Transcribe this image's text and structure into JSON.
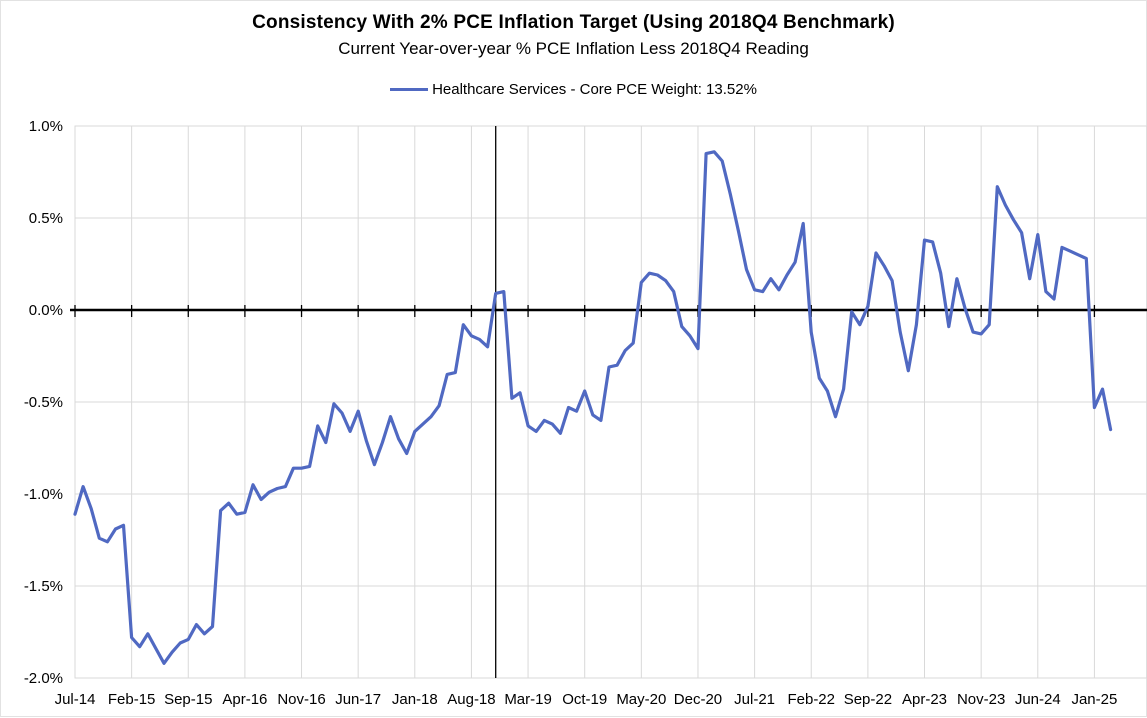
{
  "chart_data": {
    "type": "line",
    "title": "Consistency With 2% PCE Inflation Target (Using 2018Q4 Benchmark)",
    "subtitle": "Current Year-over-year % PCE Inflation Less 2018Q4 Reading",
    "legend_position": "top-center",
    "grid": true,
    "x": [
      "Jul-14",
      "Aug-14",
      "Sep-14",
      "Oct-14",
      "Nov-14",
      "Dec-14",
      "Jan-15",
      "Feb-15",
      "Mar-15",
      "Apr-15",
      "May-15",
      "Jun-15",
      "Jul-15",
      "Aug-15",
      "Sep-15",
      "Oct-15",
      "Nov-15",
      "Dec-15",
      "Jan-16",
      "Feb-16",
      "Mar-16",
      "Apr-16",
      "May-16",
      "Jun-16",
      "Jul-16",
      "Aug-16",
      "Sep-16",
      "Oct-16",
      "Nov-16",
      "Dec-16",
      "Jan-17",
      "Feb-17",
      "Mar-17",
      "Apr-17",
      "May-17",
      "Jun-17",
      "Jul-17",
      "Aug-17",
      "Sep-17",
      "Oct-17",
      "Nov-17",
      "Dec-17",
      "Jan-18",
      "Feb-18",
      "Mar-18",
      "Apr-18",
      "May-18",
      "Jun-18",
      "Jul-18",
      "Aug-18",
      "Sep-18",
      "Oct-18",
      "Nov-18",
      "Dec-18",
      "Jan-19",
      "Feb-19",
      "Mar-19",
      "Apr-19",
      "May-19",
      "Jun-19",
      "Jul-19",
      "Aug-19",
      "Sep-19",
      "Oct-19",
      "Nov-19",
      "Dec-19",
      "Jan-20",
      "Feb-20",
      "Mar-20",
      "Apr-20",
      "May-20",
      "Jun-20",
      "Jul-20",
      "Aug-20",
      "Sep-20",
      "Oct-20",
      "Nov-20",
      "Dec-20",
      "Jan-21",
      "Feb-21",
      "Mar-21",
      "Apr-21",
      "May-21",
      "Jun-21",
      "Jul-21",
      "Aug-21",
      "Sep-21",
      "Oct-21",
      "Nov-21",
      "Dec-21",
      "Jan-22",
      "Feb-22",
      "Mar-22",
      "Apr-22",
      "May-22",
      "Jun-22",
      "Jul-22",
      "Aug-22",
      "Sep-22",
      "Oct-22",
      "Nov-22",
      "Dec-22",
      "Jan-23",
      "Feb-23",
      "Mar-23",
      "Apr-23",
      "May-23",
      "Jun-23",
      "Jul-23",
      "Aug-23",
      "Sep-23",
      "Oct-23",
      "Nov-23",
      "Dec-23",
      "Jan-24",
      "Feb-24",
      "Mar-24",
      "Apr-24",
      "May-24",
      "Jun-24",
      "Jul-24",
      "Aug-24",
      "Sep-24",
      "Oct-24",
      "Nov-24",
      "Dec-24",
      "Jan-25",
      "Feb-25",
      "Mar-25"
    ],
    "series": [
      {
        "name": "Healthcare Services - Core PCE Weight: 13.52%",
        "color": "#5069c2",
        "values": [
          -1.11,
          -0.96,
          -1.08,
          -1.24,
          -1.26,
          -1.19,
          -1.17,
          -1.78,
          -1.83,
          -1.76,
          -1.84,
          -1.92,
          -1.86,
          -1.81,
          -1.79,
          -1.71,
          -1.76,
          -1.72,
          -1.09,
          -1.05,
          -1.11,
          -1.1,
          -0.95,
          -1.03,
          -0.99,
          -0.97,
          -0.96,
          -0.86,
          -0.86,
          -0.85,
          -0.63,
          -0.72,
          -0.51,
          -0.56,
          -0.66,
          -0.55,
          -0.71,
          -0.84,
          -0.72,
          -0.58,
          -0.7,
          -0.78,
          -0.66,
          -0.62,
          -0.58,
          -0.52,
          -0.35,
          -0.34,
          -0.08,
          -0.14,
          -0.16,
          -0.2,
          0.09,
          0.1,
          -0.48,
          -0.45,
          -0.63,
          -0.66,
          -0.6,
          -0.62,
          -0.67,
          -0.53,
          -0.55,
          -0.44,
          -0.57,
          -0.6,
          -0.31,
          -0.3,
          -0.22,
          -0.18,
          0.15,
          0.2,
          0.19,
          0.16,
          0.1,
          -0.09,
          -0.14,
          -0.21,
          0.85,
          0.86,
          0.81,
          0.63,
          0.43,
          0.22,
          0.11,
          0.1,
          0.17,
          0.11,
          0.19,
          0.26,
          0.47,
          -0.12,
          -0.37,
          -0.44,
          -0.58,
          -0.43,
          -0.01,
          -0.08,
          0.02,
          0.31,
          0.24,
          0.16,
          -0.12,
          -0.33,
          -0.08,
          0.38,
          0.37,
          0.2,
          -0.09,
          0.17,
          0.01,
          -0.12,
          -0.13,
          -0.08,
          0.67,
          0.57,
          0.49,
          0.42,
          0.17,
          0.41,
          0.1,
          0.06,
          0.34,
          0.32,
          0.3,
          0.28,
          -0.53,
          -0.43,
          -0.65
        ]
      }
    ],
    "x_axis": {
      "tick_labels": [
        "Jul-14",
        "Feb-15",
        "Sep-15",
        "Apr-16",
        "Nov-16",
        "Jun-17",
        "Jan-18",
        "Aug-18",
        "Mar-19",
        "Oct-19",
        "May-20",
        "Dec-20",
        "Jul-21",
        "Feb-22",
        "Sep-22",
        "Apr-23",
        "Nov-23",
        "Jun-24",
        "Jan-25"
      ],
      "tick_every_months": 7,
      "extend_months": 132.5
    },
    "y_axis": {
      "min": -2.0,
      "max": 1.0,
      "step": 0.5,
      "tick_labels": [
        "1.0%",
        "0.5%",
        "0.0%",
        "-0.5%",
        "-1.0%",
        "-1.5%",
        "-2.0%"
      ]
    },
    "annotations": {
      "zero_axis_line": true,
      "benchmark_vline_at": "Nov-18"
    },
    "colors": {
      "line": "#5069c2",
      "grid": "#d9d9d9",
      "axis": "#000000",
      "background": "#ffffff"
    }
  }
}
